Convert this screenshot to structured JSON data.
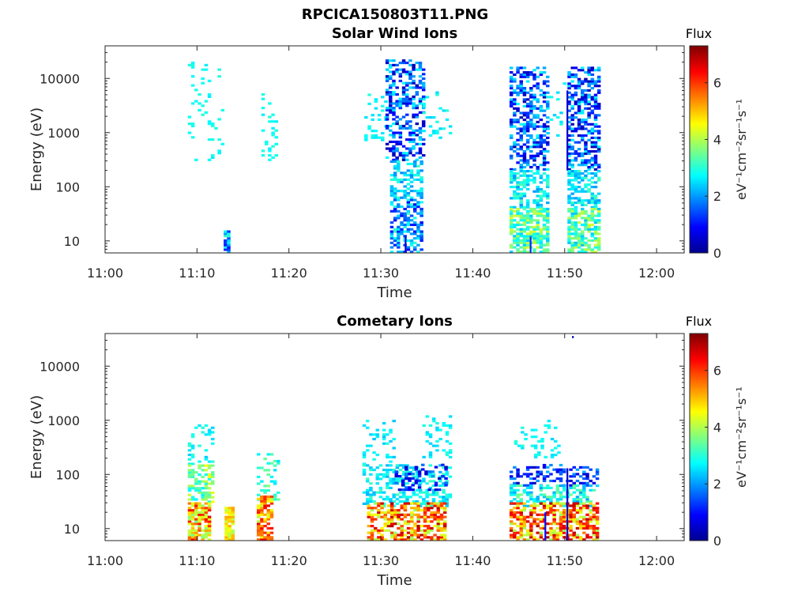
{
  "figure_title": "RPCICA150803T11.PNG",
  "colormap": [
    "#00008f",
    "#0000ff",
    "#0080ff",
    "#00ffff",
    "#80ff80",
    "#ffff00",
    "#ff8000",
    "#ff0000",
    "#800000"
  ],
  "chart_data": [
    {
      "type": "heatmap",
      "title": "Solar Wind Ions",
      "xlabel": "Time",
      "ylabel": "Energy (eV)",
      "x_ticks": [
        "11:00",
        "11:10",
        "11:20",
        "11:30",
        "11:40",
        "11:50",
        "12:00"
      ],
      "y_ticks": [
        "10",
        "100",
        "1000",
        "10000"
      ],
      "y_scale": "log",
      "xlim_minutes": [
        0,
        63
      ],
      "ylim": [
        6,
        40000
      ],
      "colorbar": {
        "title": "Flux",
        "label": "eV⁻¹cm⁻²sr⁻¹s⁻¹",
        "ticks": [
          "0",
          "2",
          "4",
          "6"
        ],
        "range": [
          0,
          7.3
        ]
      },
      "clusters": [
        {
          "t": [
            9.0,
            12.6
          ],
          "e": [
            300,
            20000
          ],
          "v": [
            2.6,
            3.0
          ],
          "density": 0.09
        },
        {
          "t": [
            12.9,
            13.4
          ],
          "e": [
            6,
            15
          ],
          "v": [
            1.0,
            3.2
          ],
          "density": 0.9
        },
        {
          "t": [
            17.0,
            18.5
          ],
          "e": [
            300,
            5000
          ],
          "v": [
            2.6,
            3.0
          ],
          "density": 0.15
        },
        {
          "t": [
            28.2,
            30.5
          ],
          "e": [
            700,
            5000
          ],
          "v": [
            2.5,
            3.0
          ],
          "density": 0.22
        },
        {
          "t": [
            30.5,
            34.5
          ],
          "e": [
            300,
            22000
          ],
          "v": [
            0.2,
            2.8
          ],
          "density": 0.42
        },
        {
          "t": [
            31.0,
            34.3
          ],
          "e": [
            60,
            300
          ],
          "v": [
            1.8,
            3.2
          ],
          "density": 0.5
        },
        {
          "t": [
            31.0,
            34.3
          ],
          "e": [
            6,
            60
          ],
          "v": [
            0.8,
            3.2
          ],
          "density": 0.55
        },
        {
          "t": [
            34.5,
            37.5
          ],
          "e": [
            700,
            6000
          ],
          "v": [
            2.4,
            3.0
          ],
          "density": 0.12
        },
        {
          "t": [
            44.0,
            48.0
          ],
          "e": [
            200,
            15000
          ],
          "v": [
            0.2,
            2.8
          ],
          "density": 0.48
        },
        {
          "t": [
            44.0,
            48.0
          ],
          "e": [
            40,
            200
          ],
          "v": [
            2.0,
            3.3
          ],
          "density": 0.55
        },
        {
          "t": [
            44.0,
            48.0
          ],
          "e": [
            6,
            40
          ],
          "v": [
            2.3,
            4.3
          ],
          "density": 0.7
        },
        {
          "t": [
            48.0,
            50.0
          ],
          "e": [
            700,
            8000
          ],
          "v": [
            2.4,
            3.0
          ],
          "density": 0.12
        },
        {
          "t": [
            50.3,
            53.8
          ],
          "e": [
            200,
            15000
          ],
          "v": [
            0.2,
            2.8
          ],
          "density": 0.5
        },
        {
          "t": [
            50.3,
            53.8
          ],
          "e": [
            40,
            200
          ],
          "v": [
            2.0,
            3.3
          ],
          "density": 0.55
        },
        {
          "t": [
            50.3,
            53.8
          ],
          "e": [
            6,
            40
          ],
          "v": [
            2.3,
            4.3
          ],
          "density": 0.65
        }
      ],
      "lines": [
        {
          "t": 50.2,
          "e": [
            200,
            6000
          ],
          "v": 0.5
        },
        {
          "t": 32.6,
          "e": [
            6,
            12
          ],
          "v": 0.6
        },
        {
          "t": 46.2,
          "e": [
            6,
            12
          ],
          "v": 1.2
        }
      ]
    },
    {
      "type": "heatmap",
      "title": "Cometary Ions",
      "xlabel": "Time",
      "ylabel": "Energy (eV)",
      "x_ticks": [
        "11:00",
        "11:10",
        "11:20",
        "11:30",
        "11:40",
        "11:50",
        "12:00"
      ],
      "y_ticks": [
        "10",
        "100",
        "1000",
        "10000"
      ],
      "y_scale": "log",
      "xlim_minutes": [
        0,
        63
      ],
      "ylim": [
        6,
        40000
      ],
      "colorbar": {
        "title": "Flux",
        "label": "eV⁻¹cm⁻²sr⁻¹s⁻¹",
        "ticks": [
          "0",
          "2",
          "4",
          "6"
        ],
        "range": [
          0,
          7.3
        ]
      },
      "clusters": [
        {
          "t": [
            9.0,
            11.8
          ],
          "e": [
            150,
            800
          ],
          "v": [
            2.4,
            3.1
          ],
          "density": 0.18
        },
        {
          "t": [
            9.0,
            11.8
          ],
          "e": [
            30,
            150
          ],
          "v": [
            2.6,
            4.6
          ],
          "density": 0.45
        },
        {
          "t": [
            9.0,
            11.3
          ],
          "e": [
            6,
            30
          ],
          "v": [
            3.5,
            6.5
          ],
          "density": 0.75
        },
        {
          "t": [
            13.0,
            13.8
          ],
          "e": [
            6,
            25
          ],
          "v": [
            4.0,
            5.2
          ],
          "density": 0.85
        },
        {
          "t": [
            16.5,
            18.8
          ],
          "e": [
            30,
            250
          ],
          "v": [
            2.5,
            3.8
          ],
          "density": 0.3
        },
        {
          "t": [
            16.5,
            18.0
          ],
          "e": [
            6,
            40
          ],
          "v": [
            4.0,
            6.6
          ],
          "density": 0.75
        },
        {
          "t": [
            28.0,
            31.5
          ],
          "e": [
            150,
            1000
          ],
          "v": [
            2.3,
            3.0
          ],
          "density": 0.18
        },
        {
          "t": [
            28.0,
            37.5
          ],
          "e": [
            25,
            150
          ],
          "v": [
            2.2,
            3.2
          ],
          "density": 0.4
        },
        {
          "t": [
            31.5,
            37.0
          ],
          "e": [
            50,
            150
          ],
          "v": [
            0.3,
            2.0
          ],
          "density": 0.3
        },
        {
          "t": [
            28.5,
            37.0
          ],
          "e": [
            6,
            30
          ],
          "v": [
            3.8,
            7.0
          ],
          "density": 0.65
        },
        {
          "t": [
            34.5,
            37.5
          ],
          "e": [
            200,
            1200
          ],
          "v": [
            2.4,
            3.0
          ],
          "density": 0.18
        },
        {
          "t": [
            44.0,
            53.5
          ],
          "e": [
            60,
            150
          ],
          "v": [
            0.3,
            2.2
          ],
          "density": 0.35
        },
        {
          "t": [
            44.0,
            53.5
          ],
          "e": [
            25,
            60
          ],
          "v": [
            2.0,
            3.6
          ],
          "density": 0.45
        },
        {
          "t": [
            44.0,
            53.5
          ],
          "e": [
            6,
            30
          ],
          "v": [
            3.8,
            7.0
          ],
          "density": 0.6
        },
        {
          "t": [
            44.5,
            49.5
          ],
          "e": [
            200,
            1000
          ],
          "v": [
            2.4,
            3.0
          ],
          "density": 0.15
        }
      ],
      "lines": [
        {
          "t": 50.2,
          "e": [
            6,
            130
          ],
          "v": 0.5
        },
        {
          "t": 47.8,
          "e": [
            6,
            20
          ],
          "v": 1.0
        },
        {
          "t": 50.8,
          "e": [
            33000,
            36000
          ],
          "v": 0.3
        }
      ]
    }
  ]
}
